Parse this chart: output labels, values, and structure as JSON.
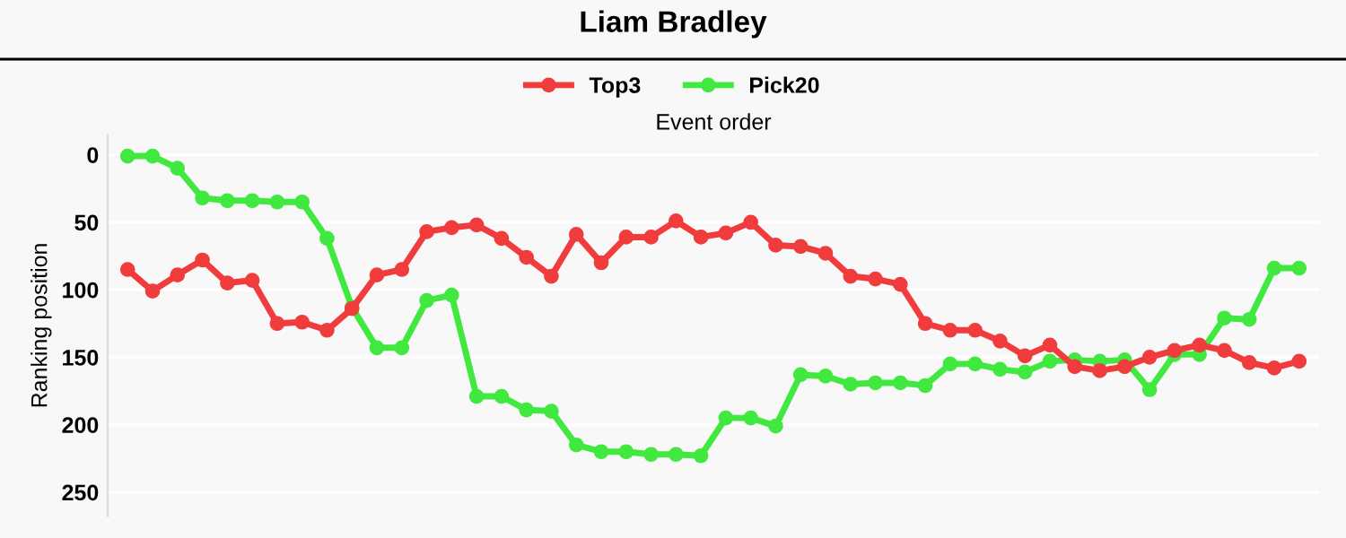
{
  "chart_data": {
    "type": "line",
    "title": "Liam Bradley",
    "xlabel": "Event order",
    "ylabel": "Ranking position",
    "categories": [
      null,
      null,
      null,
      null,
      null,
      null,
      null,
      null,
      null,
      null,
      null,
      null,
      null,
      null,
      null,
      null,
      null,
      null,
      null,
      null,
      null,
      null,
      null,
      null,
      null,
      null,
      null,
      null,
      null,
      null,
      null,
      null,
      null,
      null,
      null,
      null,
      null,
      null,
      null,
      null,
      null,
      null,
      null,
      null,
      null,
      null,
      null,
      null
    ],
    "series": [
      {
        "name": "Top3",
        "color": "#f03c3c",
        "values": [
          85,
          101,
          89,
          78,
          95,
          93,
          125,
          124,
          130,
          114,
          89,
          85,
          57,
          54,
          52,
          62,
          76,
          90,
          59,
          80,
          61,
          61,
          49,
          61,
          58,
          50,
          67,
          68,
          73,
          90,
          92,
          96,
          125,
          130,
          130,
          138,
          149,
          141,
          157,
          160,
          157,
          150,
          145,
          141,
          145,
          154,
          158,
          153
        ]
      },
      {
        "name": "Pick20",
        "color": "#40e840",
        "values": [
          1,
          1,
          10,
          32,
          34,
          34,
          35,
          35,
          62,
          113,
          143,
          143,
          108,
          104,
          179,
          179,
          189,
          190,
          215,
          220,
          220,
          222,
          222,
          223,
          195,
          195,
          201,
          163,
          164,
          170,
          169,
          169,
          171,
          155,
          155,
          159,
          161,
          153,
          152,
          153,
          152,
          174,
          148,
          148,
          121,
          122,
          84,
          84
        ]
      }
    ],
    "ylim": [
      268,
      -15
    ],
    "yticks": [
      0,
      50,
      100,
      150,
      200,
      250
    ],
    "grid": "y",
    "legend": "top",
    "marker": "circle",
    "line_style": "solid"
  }
}
